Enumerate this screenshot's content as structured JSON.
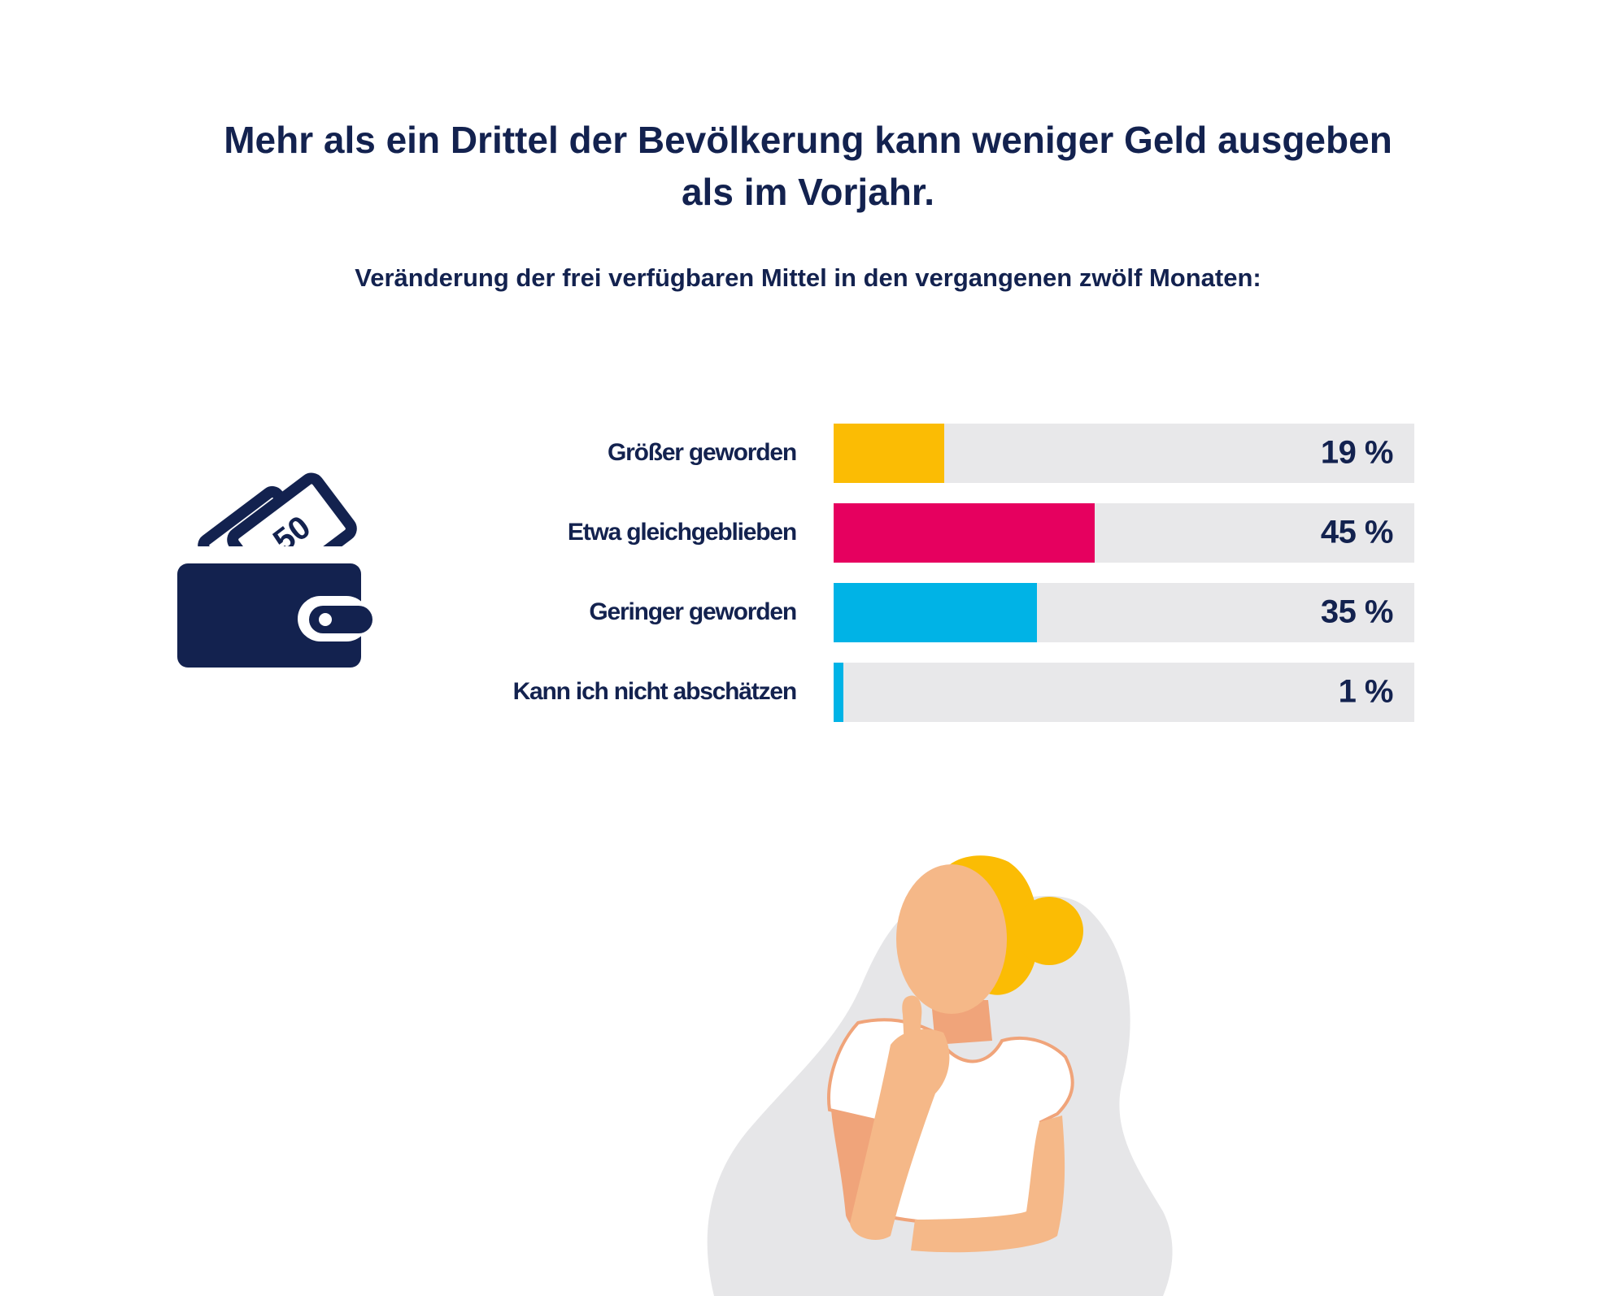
{
  "title_line1": "Mehr als ein Drittel der Bevölkerung kann weniger Geld ausgeben",
  "title_line2": "als im Vorjahr.",
  "subtitle": "Veränderung der frei verfügbaren Mittel in den vergangenen zwölf Monaten:",
  "wallet_icon": {
    "icon": "wallet-icon",
    "note_text": "50",
    "color": "#13224f"
  },
  "person_illustration": {
    "icon": "thinking-woman-illustration"
  },
  "chart_data": {
    "type": "bar",
    "orientation": "horizontal",
    "title": "Mehr als ein Drittel der Bevölkerung kann weniger Geld ausgeben als im Vorjahr.",
    "subtitle": "Veränderung der frei verfügbaren Mittel in den vergangenen zwölf Monaten:",
    "categories": [
      "Größer geworden",
      "Etwa gleichgeblieben",
      "Geringer geworden",
      "Kann ich nicht abschätzen"
    ],
    "values": [
      19,
      45,
      35,
      1
    ],
    "value_labels": [
      "19 %",
      "45 %",
      "35 %",
      "1 %"
    ],
    "colors": [
      "#fbbc04",
      "#e6005f",
      "#00b3e6",
      "#00b3e6"
    ],
    "track_color": "#e8e8ea",
    "unit": "%",
    "xlim": [
      0,
      100
    ],
    "grid": false,
    "legend": "none"
  }
}
